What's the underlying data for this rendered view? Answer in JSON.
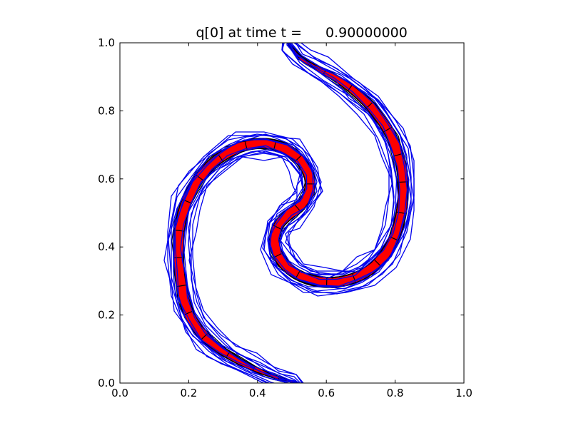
{
  "window": {
    "background": "#ffffff"
  },
  "title": {
    "full": "q[0] at time t =     0.90000000",
    "label_part": "q[0] at time t =",
    "value_part": "0.90000000"
  },
  "axes": {
    "xlim": [
      0.0,
      1.0
    ],
    "ylim": [
      0.0,
      1.0
    ],
    "xticks": [
      0.0,
      0.2,
      0.4,
      0.6,
      0.8,
      1.0
    ],
    "yticks": [
      0.0,
      0.2,
      0.4,
      0.6,
      0.8,
      1.0
    ],
    "xtick_labels": [
      "0.0",
      "0.2",
      "0.4",
      "0.6",
      "0.8",
      "1.0"
    ],
    "ytick_labels": [
      "0.0",
      "0.2",
      "0.4",
      "0.6",
      "0.8",
      "1.0"
    ],
    "frame_color": "#000000",
    "tick_direction": "in"
  },
  "colors": {
    "band_fill": "#fe0000",
    "band_edge": "#000000",
    "outer_contours": "#0000ee",
    "text": "#000000",
    "background": "#ffffff"
  },
  "chart_data": {
    "type": "contour",
    "title": "q[0] at time t =     0.90000000",
    "xlim": [
      0,
      1
    ],
    "ylim": [
      0,
      1
    ],
    "xticks": [
      0.0,
      0.2,
      0.4,
      0.6,
      0.8,
      1.0
    ],
    "yticks": [
      0.0,
      0.2,
      0.4,
      0.6,
      0.8,
      1.0
    ],
    "grid": false,
    "legend": false,
    "description": "Swirling-flow advection test at t=0.9: a circular tracer q[0] stretched into a double-spiral (yin-yang) filament. Red filled band between contour levels with black contour edges, black transverse grid marks, and multiple jagged blue outer contour lines.",
    "band_halfwidth": 0.0145,
    "band_centerline": [
      [
        0.508,
        0.003
      ],
      [
        0.468,
        0.013
      ],
      [
        0.42,
        0.03
      ],
      [
        0.37,
        0.052
      ],
      [
        0.32,
        0.08
      ],
      [
        0.272,
        0.113
      ],
      [
        0.232,
        0.153
      ],
      [
        0.203,
        0.2
      ],
      [
        0.185,
        0.255
      ],
      [
        0.174,
        0.318
      ],
      [
        0.17,
        0.385
      ],
      [
        0.173,
        0.448
      ],
      [
        0.185,
        0.507
      ],
      [
        0.206,
        0.56
      ],
      [
        0.236,
        0.609
      ],
      [
        0.275,
        0.65
      ],
      [
        0.322,
        0.681
      ],
      [
        0.373,
        0.7
      ],
      [
        0.425,
        0.704
      ],
      [
        0.475,
        0.692
      ],
      [
        0.515,
        0.665
      ],
      [
        0.542,
        0.629
      ],
      [
        0.553,
        0.59
      ],
      [
        0.546,
        0.552
      ],
      [
        0.521,
        0.517
      ],
      [
        0.487,
        0.492
      ],
      [
        0.46,
        0.462
      ],
      [
        0.449,
        0.424
      ],
      [
        0.456,
        0.385
      ],
      [
        0.478,
        0.349
      ],
      [
        0.512,
        0.321
      ],
      [
        0.554,
        0.303
      ],
      [
        0.601,
        0.296
      ],
      [
        0.65,
        0.3
      ],
      [
        0.698,
        0.316
      ],
      [
        0.74,
        0.344
      ],
      [
        0.774,
        0.383
      ],
      [
        0.799,
        0.431
      ],
      [
        0.815,
        0.486
      ],
      [
        0.823,
        0.545
      ],
      [
        0.822,
        0.606
      ],
      [
        0.812,
        0.664
      ],
      [
        0.792,
        0.719
      ],
      [
        0.763,
        0.77
      ],
      [
        0.726,
        0.817
      ],
      [
        0.681,
        0.858
      ],
      [
        0.63,
        0.894
      ],
      [
        0.575,
        0.925
      ],
      [
        0.527,
        0.953
      ],
      [
        0.492,
        0.997
      ]
    ]
  }
}
